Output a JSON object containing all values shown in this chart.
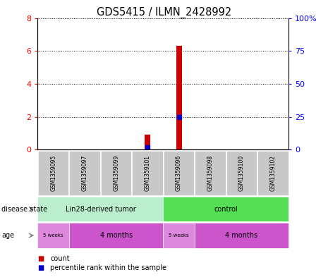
{
  "title": "GDS5415 / ILMN_2428992",
  "samples": [
    "GSM1359095",
    "GSM1359097",
    "GSM1359099",
    "GSM1359101",
    "GSM1359096",
    "GSM1359098",
    "GSM1359100",
    "GSM1359102"
  ],
  "count_values": [
    0,
    0,
    0,
    0.9,
    6.3,
    0,
    0,
    0
  ],
  "percentile_values": [
    0,
    0,
    0,
    0.15,
    2.0,
    0,
    0,
    0
  ],
  "ylim_left": [
    0,
    8
  ],
  "ylim_right": [
    0,
    100
  ],
  "yticks_left": [
    0,
    2,
    4,
    6,
    8
  ],
  "yticks_right": [
    0,
    25,
    50,
    75,
    100
  ],
  "ytick_labels_right": [
    "0",
    "25",
    "50",
    "75",
    "100%"
  ],
  "bar_color": "#cc0000",
  "dot_color": "#0000cc",
  "sample_box_color": "#c8c8c8",
  "ds_tumor_color": "#bbeecc",
  "ds_control_color": "#55dd55",
  "age_5w_color": "#dd88dd",
  "age_4m_color": "#cc55cc",
  "disease_state_labels": [
    "Lin28-derived tumor",
    "control"
  ],
  "legend_count_label": "count",
  "legend_pct_label": "percentile rank within the sample",
  "figure_width": 4.65,
  "figure_height": 3.93
}
